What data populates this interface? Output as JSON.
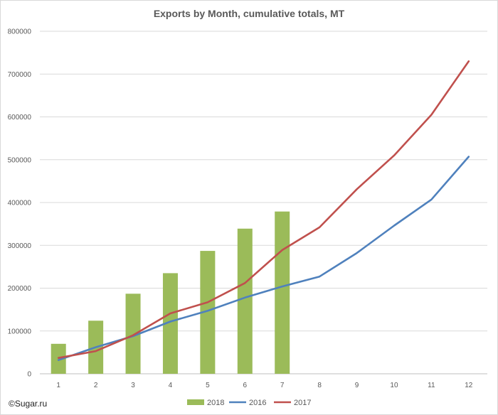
{
  "chart_data": {
    "type": "bar",
    "title": "Exports by Month, cumulative totals, MT",
    "xlabel": "",
    "ylabel": "",
    "categories": [
      "1",
      "2",
      "3",
      "4",
      "5",
      "6",
      "7",
      "8",
      "9",
      "10",
      "11",
      "12"
    ],
    "ylim": [
      0,
      800000
    ],
    "yticks": [
      0,
      100000,
      200000,
      300000,
      400000,
      500000,
      600000,
      700000,
      800000
    ],
    "ytick_labels": [
      "0",
      "100000",
      "200000",
      "300000",
      "400000",
      "500000",
      "600000",
      "700000",
      "800000"
    ],
    "grid": true,
    "legend_position": "bottom",
    "series": [
      {
        "name": "2018",
        "kind": "bar",
        "color": "#9bbb59",
        "values": [
          70000,
          124000,
          187000,
          235000,
          287000,
          339000,
          379000,
          null,
          null,
          null,
          null,
          null
        ]
      },
      {
        "name": "2016",
        "kind": "line",
        "color": "#4f81bd",
        "values": [
          32000,
          62000,
          88000,
          122000,
          147000,
          178000,
          204000,
          227000,
          282000,
          346000,
          407000,
          507000
        ]
      },
      {
        "name": "2017",
        "kind": "line",
        "color": "#c0504d",
        "values": [
          37000,
          53000,
          90000,
          141000,
          167000,
          212000,
          289000,
          342000,
          431000,
          510000,
          605000,
          730000
        ]
      }
    ]
  },
  "watermark": "©Sugar.ru"
}
